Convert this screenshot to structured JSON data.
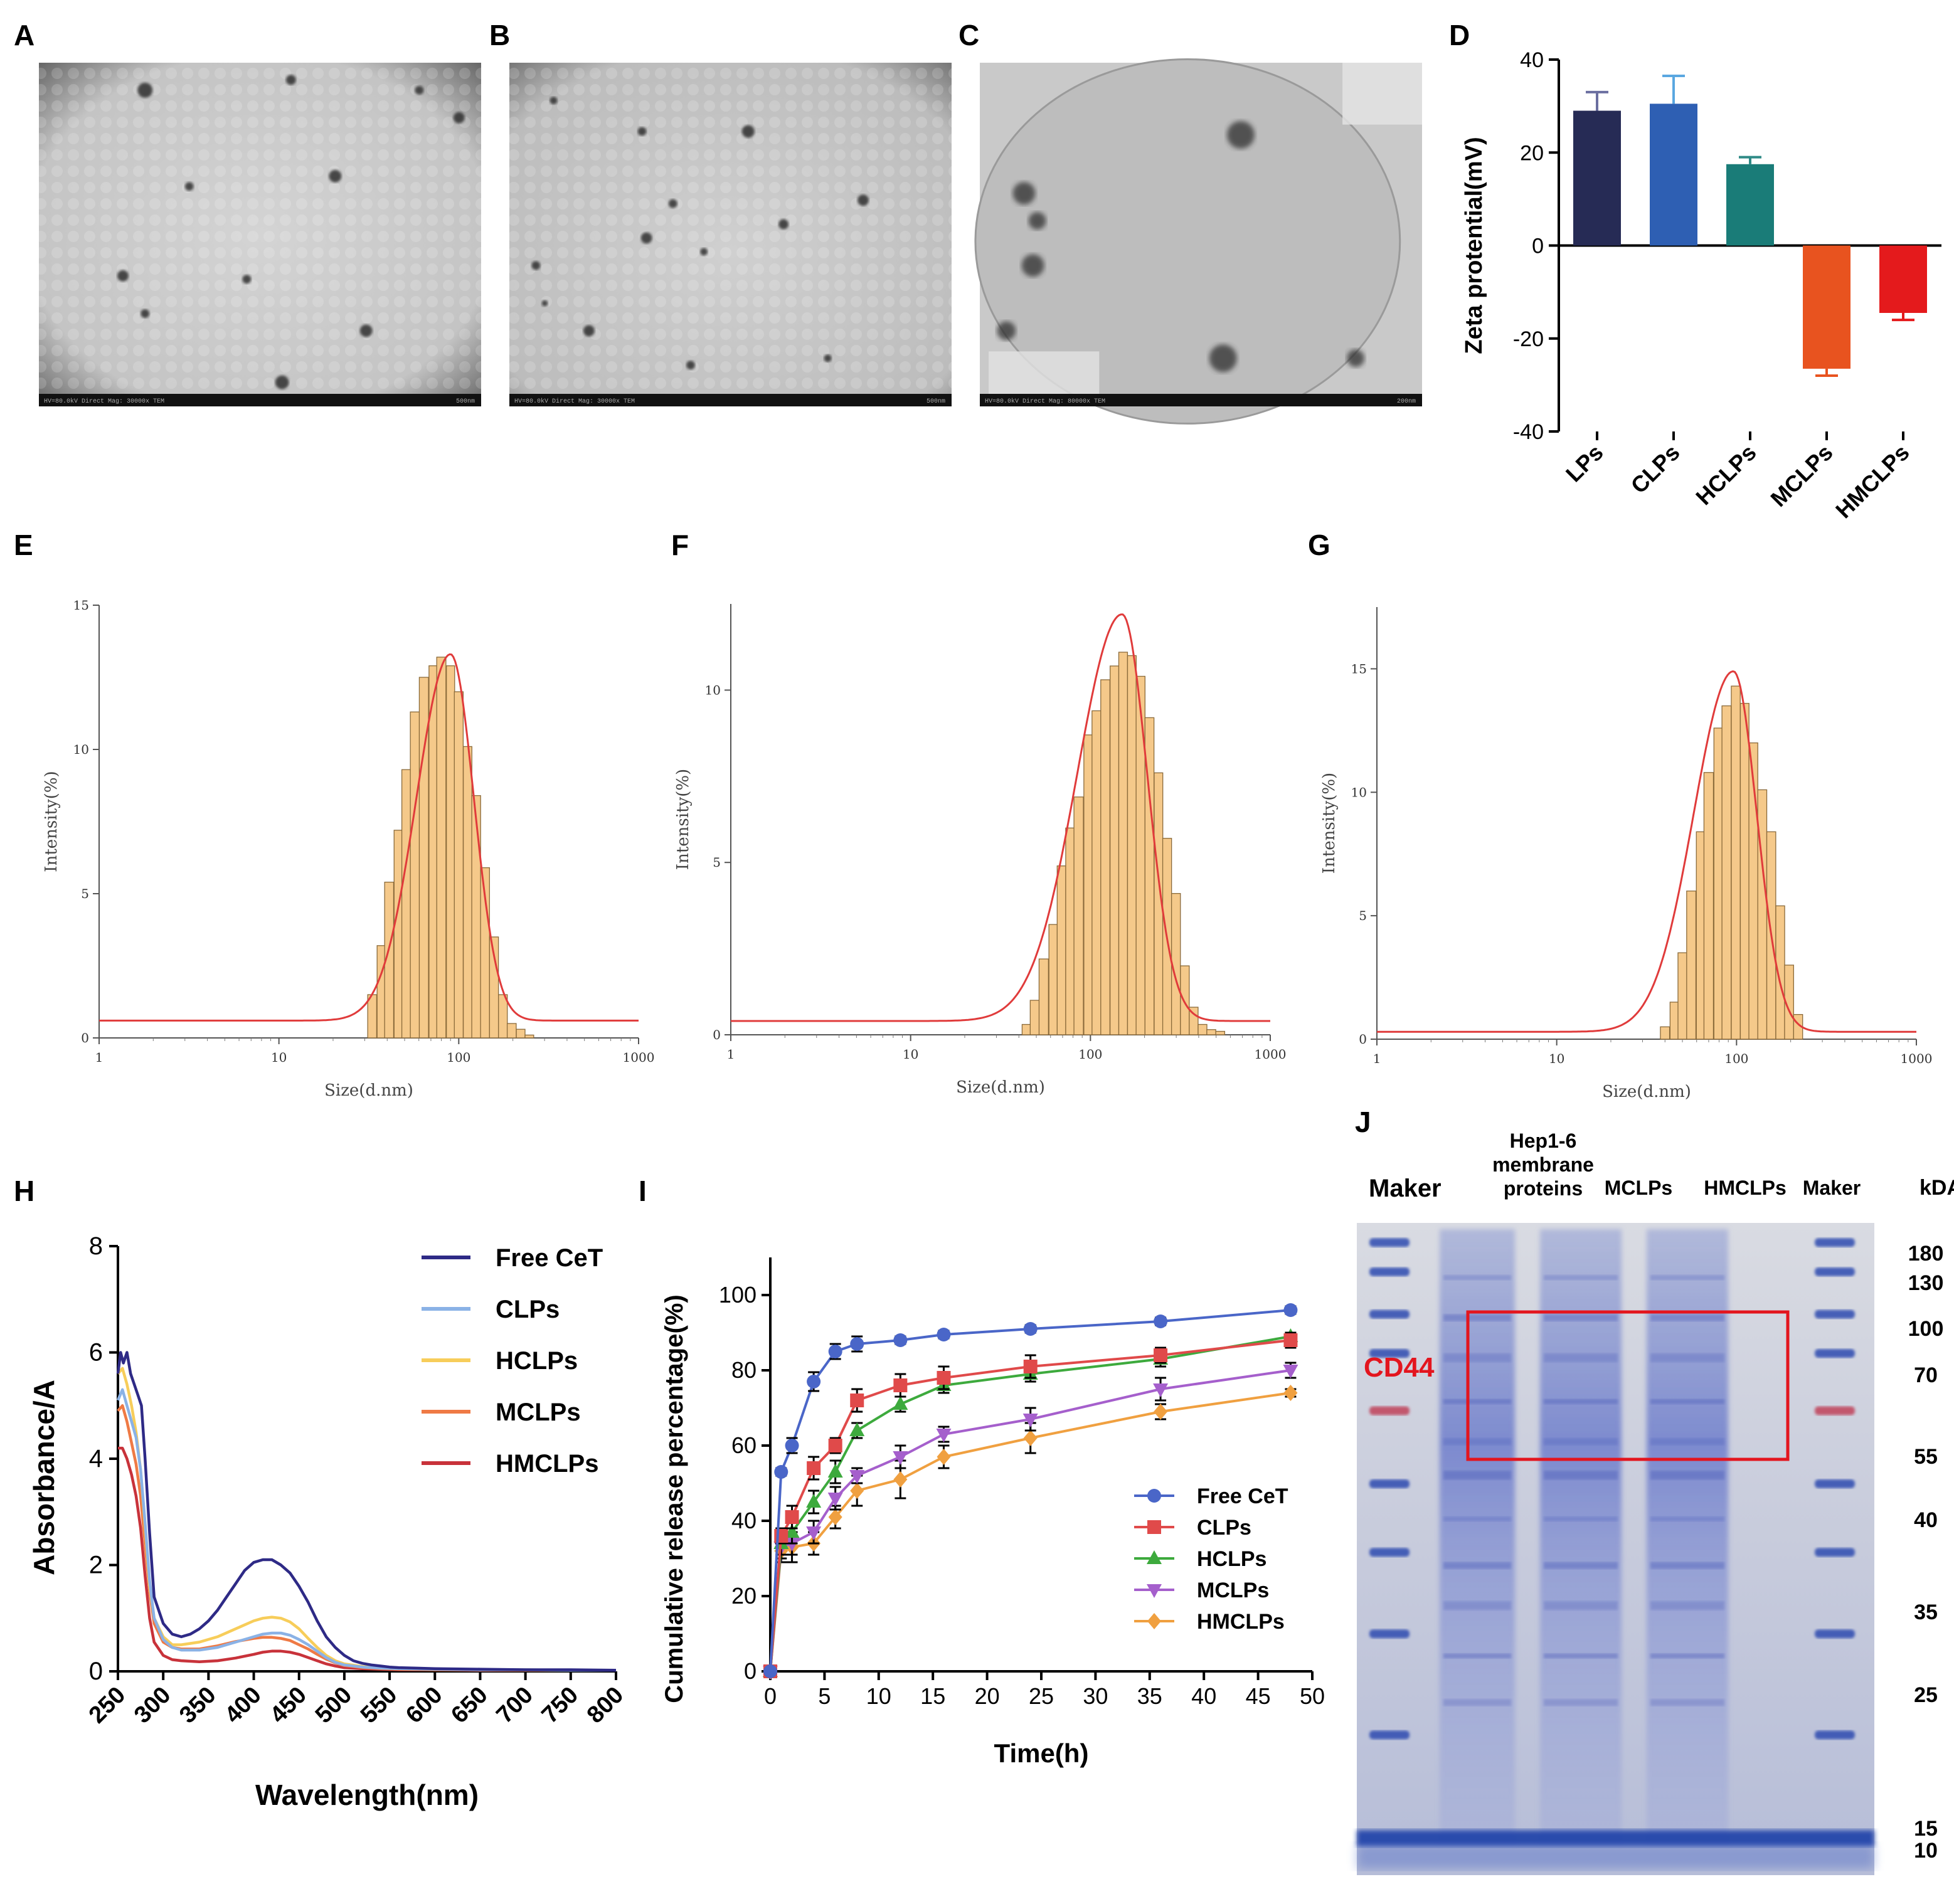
{
  "panels": {
    "A": "A",
    "B": "B",
    "C": "C",
    "D": "D",
    "E": "E",
    "F": "F",
    "G": "G",
    "H": "H",
    "I": "I",
    "J": "J"
  },
  "tem_panels": [
    {
      "id": "A",
      "scalebar_text": "HV=80.0kV  Direct Mag: 30000x  TEM",
      "scale_text": "500nm",
      "particles": [
        [
          0.24,
          0.08,
          12
        ],
        [
          0.57,
          0.05,
          8
        ],
        [
          0.95,
          0.16,
          9
        ],
        [
          0.67,
          0.33,
          10
        ],
        [
          0.34,
          0.36,
          7
        ],
        [
          0.86,
          0.08,
          7
        ],
        [
          0.19,
          0.62,
          9
        ],
        [
          0.47,
          0.63,
          7
        ],
        [
          0.74,
          0.78,
          10
        ],
        [
          0.24,
          0.73,
          7
        ],
        [
          0.55,
          0.93,
          11
        ]
      ]
    },
    {
      "id": "B",
      "scalebar_text": "HV=80.0kV  Direct Mag: 30000x  TEM",
      "scale_text": "500nm",
      "particles": [
        [
          0.1,
          0.11,
          6
        ],
        [
          0.54,
          0.2,
          10
        ],
        [
          0.3,
          0.2,
          7
        ],
        [
          0.37,
          0.41,
          7
        ],
        [
          0.31,
          0.51,
          9
        ],
        [
          0.44,
          0.55,
          6
        ],
        [
          0.62,
          0.47,
          8
        ],
        [
          0.06,
          0.59,
          7
        ],
        [
          0.8,
          0.4,
          9
        ],
        [
          0.18,
          0.78,
          9
        ],
        [
          0.72,
          0.86,
          6
        ],
        [
          0.41,
          0.88,
          7
        ],
        [
          0.08,
          0.7,
          5
        ]
      ]
    },
    {
      "id": "C",
      "scalebar_text": "HV=80.0kV  Direct Mag: 80000x  TEM",
      "scale_text": "200nm",
      "particles": [
        [
          0.59,
          0.21,
          22
        ],
        [
          0.1,
          0.38,
          18
        ],
        [
          0.13,
          0.46,
          14
        ],
        [
          0.12,
          0.59,
          18
        ],
        [
          0.06,
          0.78,
          15
        ],
        [
          0.55,
          0.86,
          22
        ],
        [
          0.85,
          0.86,
          14
        ]
      ]
    }
  ],
  "chart_data": [
    {
      "id": "D",
      "type": "bar",
      "ylabel": "Zeta protential(mV)",
      "ylim": [
        -40,
        40
      ],
      "yticks": [
        40,
        20,
        0,
        -20,
        -40
      ],
      "categories": [
        "LPs",
        "CLPs",
        "HCLPs",
        "MCLPs",
        "HMCLPs"
      ],
      "values": [
        29,
        30.5,
        17.5,
        -26.5,
        -14.5
      ],
      "errors": [
        4,
        6,
        1.5,
        1.5,
        1.5
      ],
      "colors": [
        "#262b55",
        "#2e5fb3",
        "#1a7c78",
        "#e8531f",
        "#e41a1c"
      ],
      "errcolors": [
        "#6b6fa0",
        "#5aa7e0",
        "#2e8a86",
        "#e8531f",
        "#e41a1c"
      ]
    },
    {
      "id": "E",
      "type": "bar+line",
      "xlabel": "Size(d.nm)",
      "ylabel": "Intensity(%)",
      "xscale": "log",
      "xlim": [
        1,
        1000
      ],
      "xticks": [
        "1",
        "10",
        "100",
        "1000"
      ],
      "ylim": [
        0,
        15
      ],
      "yticks": [
        "0",
        "5",
        "10",
        "15"
      ],
      "hist_x": [
        33,
        37,
        41,
        46,
        51,
        57,
        64,
        72,
        80,
        90,
        100,
        112,
        125,
        140,
        157,
        176,
        197,
        221,
        247
      ],
      "hist_y": [
        1.5,
        3.2,
        5.4,
        7.2,
        9.3,
        11.3,
        12.5,
        12.9,
        13.2,
        12.9,
        12.0,
        10.1,
        8.4,
        5.9,
        3.5,
        1.5,
        0.5,
        0.3,
        0.1
      ],
      "fit": {
        "baseline": 0.6,
        "peak": 13.3,
        "mode": 90,
        "sigma_left": 0.19,
        "sigma_right": 0.13
      }
    },
    {
      "id": "F",
      "type": "bar+line",
      "xlabel": "Size(d.nm)",
      "ylabel": "Intensity(%)",
      "xscale": "log",
      "xlim": [
        1,
        1000
      ],
      "xticks": [
        "1",
        "10",
        "100",
        "1000"
      ],
      "ylim": [
        0,
        12.5
      ],
      "yticks": [
        "0",
        "5",
        "10"
      ],
      "hist_x": [
        44,
        49,
        55,
        62,
        69,
        77,
        86,
        97,
        108,
        121,
        136,
        152,
        170,
        190,
        213,
        239,
        267,
        299,
        335,
        375,
        420,
        470,
        527
      ],
      "hist_y": [
        0.3,
        1.0,
        2.2,
        3.2,
        4.9,
        6.0,
        6.9,
        8.7,
        9.4,
        10.3,
        10.7,
        11.1,
        11.0,
        10.4,
        9.2,
        7.6,
        5.7,
        4.1,
        2.0,
        0.8,
        0.3,
        0.15,
        0.1
      ],
      "fit": {
        "baseline": 0.4,
        "peak": 12.2,
        "mode": 150,
        "sigma_left": 0.25,
        "sigma_right": 0.14
      }
    },
    {
      "id": "G",
      "type": "bar+line",
      "xlabel": "Size(d.nm)",
      "ylabel": "Intensity(%)",
      "xscale": "log",
      "xlim": [
        1,
        1000
      ],
      "xticks": [
        "1",
        "10",
        "100",
        "1000"
      ],
      "ylim": [
        0,
        17.5
      ],
      "yticks": [
        "0",
        "5",
        "10",
        "15"
      ],
      "hist_x": [
        40,
        45,
        50,
        56,
        63,
        70,
        79,
        88,
        99,
        111,
        124,
        139,
        156,
        175,
        196,
        220
      ],
      "hist_y": [
        0.5,
        1.5,
        3.5,
        6.0,
        8.4,
        10.8,
        12.6,
        13.5,
        14.3,
        13.6,
        12.0,
        10.1,
        8.4,
        5.4,
        3.0,
        1.0
      ],
      "fit": {
        "baseline": 0.3,
        "peak": 14.9,
        "mode": 96,
        "sigma_left": 0.22,
        "sigma_right": 0.13
      }
    },
    {
      "id": "H",
      "type": "line",
      "xlabel": "Wavelength(nm)",
      "ylabel": "Absorbance/A",
      "xlim": [
        250,
        800
      ],
      "xticks": [
        "250",
        "300",
        "350",
        "400",
        "450",
        "500",
        "550",
        "600",
        "650",
        "700",
        "750",
        "800"
      ],
      "ylim": [
        0,
        8
      ],
      "yticks": [
        "0",
        "2",
        "4",
        "6",
        "8"
      ],
      "series": [
        {
          "name": "Free CeT",
          "color": "#2e2a86",
          "x": [
            250,
            253,
            256,
            260,
            264,
            268,
            272,
            276,
            280,
            285,
            290,
            300,
            310,
            320,
            330,
            340,
            350,
            360,
            370,
            380,
            390,
            400,
            410,
            420,
            430,
            440,
            450,
            460,
            470,
            480,
            490,
            500,
            510,
            520,
            530,
            540,
            550,
            560,
            580,
            600,
            650,
            700,
            750,
            800
          ],
          "y": [
            5.6,
            6.0,
            5.8,
            6.0,
            5.6,
            5.4,
            5.2,
            5.0,
            4.0,
            2.6,
            1.4,
            0.9,
            0.7,
            0.65,
            0.7,
            0.8,
            0.95,
            1.15,
            1.4,
            1.65,
            1.9,
            2.05,
            2.1,
            2.1,
            2.0,
            1.85,
            1.6,
            1.3,
            0.95,
            0.65,
            0.45,
            0.3,
            0.2,
            0.15,
            0.12,
            0.1,
            0.08,
            0.07,
            0.06,
            0.05,
            0.04,
            0.03,
            0.03,
            0.02
          ]
        },
        {
          "name": "CLPs",
          "color": "#8ab2e6",
          "x": [
            250,
            255,
            260,
            265,
            270,
            275,
            280,
            285,
            290,
            300,
            310,
            320,
            340,
            360,
            380,
            400,
            410,
            420,
            430,
            440,
            450,
            460,
            470,
            480,
            490,
            500,
            520,
            540,
            560,
            600,
            650,
            700,
            750,
            800
          ],
          "y": [
            5.1,
            5.3,
            5.0,
            4.7,
            4.4,
            3.8,
            2.8,
            1.7,
            1.0,
            0.6,
            0.45,
            0.4,
            0.4,
            0.45,
            0.55,
            0.65,
            0.7,
            0.72,
            0.72,
            0.68,
            0.6,
            0.5,
            0.38,
            0.26,
            0.17,
            0.12,
            0.08,
            0.06,
            0.05,
            0.04,
            0.03,
            0.03,
            0.02,
            0.02
          ]
        },
        {
          "name": "HCLPs",
          "color": "#f7cd5a",
          "x": [
            250,
            255,
            260,
            265,
            270,
            275,
            280,
            285,
            290,
            300,
            310,
            320,
            340,
            360,
            380,
            400,
            410,
            420,
            430,
            440,
            450,
            460,
            470,
            480,
            490,
            500,
            520,
            540,
            560,
            600,
            650,
            700,
            750,
            800
          ],
          "y": [
            5.6,
            5.7,
            5.4,
            5.0,
            4.5,
            3.8,
            2.7,
            1.6,
            1.0,
            0.65,
            0.5,
            0.5,
            0.55,
            0.65,
            0.8,
            0.95,
            1.0,
            1.02,
            1.0,
            0.93,
            0.8,
            0.62,
            0.45,
            0.3,
            0.2,
            0.14,
            0.09,
            0.07,
            0.05,
            0.04,
            0.03,
            0.03,
            0.02,
            0.02
          ]
        },
        {
          "name": "MCLPs",
          "color": "#ef7a45",
          "x": [
            250,
            255,
            260,
            265,
            270,
            275,
            280,
            285,
            290,
            300,
            310,
            320,
            340,
            360,
            380,
            400,
            410,
            420,
            430,
            440,
            450,
            460,
            470,
            480,
            490,
            500,
            520,
            540,
            560,
            600,
            650,
            700,
            750,
            800
          ],
          "y": [
            4.9,
            5.0,
            4.7,
            4.3,
            3.9,
            3.3,
            2.4,
            1.5,
            0.9,
            0.55,
            0.45,
            0.42,
            0.42,
            0.48,
            0.56,
            0.62,
            0.64,
            0.64,
            0.62,
            0.58,
            0.5,
            0.42,
            0.32,
            0.23,
            0.16,
            0.11,
            0.07,
            0.05,
            0.04,
            0.03,
            0.03,
            0.02,
            0.02,
            0.02
          ]
        },
        {
          "name": "HMCLPs",
          "color": "#c8323a",
          "x": [
            250,
            255,
            260,
            265,
            270,
            275,
            280,
            285,
            290,
            300,
            310,
            320,
            340,
            360,
            380,
            400,
            410,
            420,
            430,
            440,
            450,
            460,
            470,
            480,
            490,
            500,
            520,
            540,
            560,
            600,
            650,
            700,
            750,
            800
          ],
          "y": [
            4.2,
            4.2,
            4.0,
            3.7,
            3.3,
            2.7,
            1.8,
            1.0,
            0.55,
            0.3,
            0.22,
            0.2,
            0.18,
            0.2,
            0.25,
            0.32,
            0.36,
            0.38,
            0.38,
            0.36,
            0.32,
            0.26,
            0.2,
            0.14,
            0.1,
            0.07,
            0.05,
            0.04,
            0.03,
            0.03,
            0.02,
            0.02,
            0.02,
            0.02
          ]
        }
      ]
    },
    {
      "id": "I",
      "type": "line",
      "xlabel": "Time(h)",
      "ylabel": "Cumulative release percentage(%)",
      "xlim": [
        0,
        50
      ],
      "xticks": [
        "0",
        "5",
        "10",
        "15",
        "20",
        "25",
        "30",
        "35",
        "40",
        "45",
        "50"
      ],
      "ylim": [
        0,
        110
      ],
      "yticks": [
        "0",
        "20",
        "40",
        "60",
        "80",
        "100"
      ],
      "x": [
        0,
        1,
        2,
        4,
        6,
        8,
        12,
        16,
        24,
        36,
        48
      ],
      "series": [
        {
          "name": "Free CeT",
          "color": "#4a66c8",
          "marker": "circle",
          "y": [
            0,
            53,
            60,
            77,
            85,
            87,
            88,
            89.5,
            91,
            93,
            96
          ],
          "err": [
            0,
            1,
            2,
            2.5,
            2,
            2,
            1,
            1,
            1,
            1,
            1
          ]
        },
        {
          "name": "CLPs",
          "color": "#e04a4a",
          "marker": "square",
          "y": [
            0,
            36,
            41,
            54,
            60,
            72,
            76,
            78,
            81,
            84,
            88
          ],
          "err": [
            0,
            2,
            3,
            3,
            2,
            3,
            3,
            3,
            3,
            2,
            2
          ]
        },
        {
          "name": "HCLPs",
          "color": "#3daa3d",
          "marker": "triangle-up",
          "y": [
            0,
            34,
            37,
            45,
            53,
            64,
            71,
            76,
            79,
            83,
            89
          ],
          "err": [
            0,
            3,
            3,
            3,
            3,
            2,
            2,
            2,
            2,
            2,
            1
          ]
        },
        {
          "name": "MCLPs",
          "color": "#a55fcc",
          "marker": "triangle-down",
          "y": [
            0,
            33,
            34,
            37,
            46,
            52,
            57,
            63,
            67,
            75,
            80
          ],
          "err": [
            0,
            3,
            3,
            3,
            3,
            2,
            3,
            2,
            3,
            3,
            2
          ]
        },
        {
          "name": "HMCLPs",
          "color": "#f0a040",
          "marker": "diamond",
          "y": [
            0,
            32,
            33,
            34,
            41,
            48,
            51,
            57,
            62,
            69,
            74
          ],
          "err": [
            0,
            3,
            4,
            3,
            3,
            4,
            5,
            3,
            4,
            2,
            1
          ]
        }
      ]
    }
  ],
  "gel": {
    "id": "J",
    "header_left": "Maker",
    "lane_labels": [
      "Hep1-6 membrane proteins",
      "MCLPs",
      "HMCLPs",
      "Maker"
    ],
    "unit_label": "kDA",
    "marker_kda": [
      "180",
      "130",
      "100",
      "70",
      "55",
      "40",
      "35",
      "25",
      "15",
      "10"
    ],
    "highlight_label": "CD44",
    "highlight_color": "#e3151e"
  }
}
